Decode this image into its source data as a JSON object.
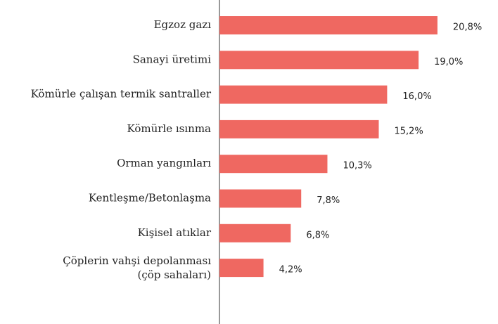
{
  "chart_data": {
    "type": "hbar",
    "categories": [
      "Egzoz gazı",
      "Sanayi üretimi",
      "Kömürle çalışan termik santraller",
      "Kömürle ısınma",
      "Orman yangınları",
      "Kentleşme/Betonlaşma",
      "Kişisel atıklar",
      [
        "Çöplerin vahşi depolanması",
        "(çöp sahaları)"
      ]
    ],
    "values": [
      20.8,
      19.0,
      16.0,
      15.2,
      10.3,
      7.8,
      6.8,
      4.2
    ],
    "value_labels": [
      "20,8%",
      "19,0%",
      "16,0%",
      "15,2%",
      "10,3%",
      "7,8%",
      "6,8%",
      "4,2%"
    ],
    "color": "#ef6861",
    "xlim": [
      0,
      25
    ]
  }
}
